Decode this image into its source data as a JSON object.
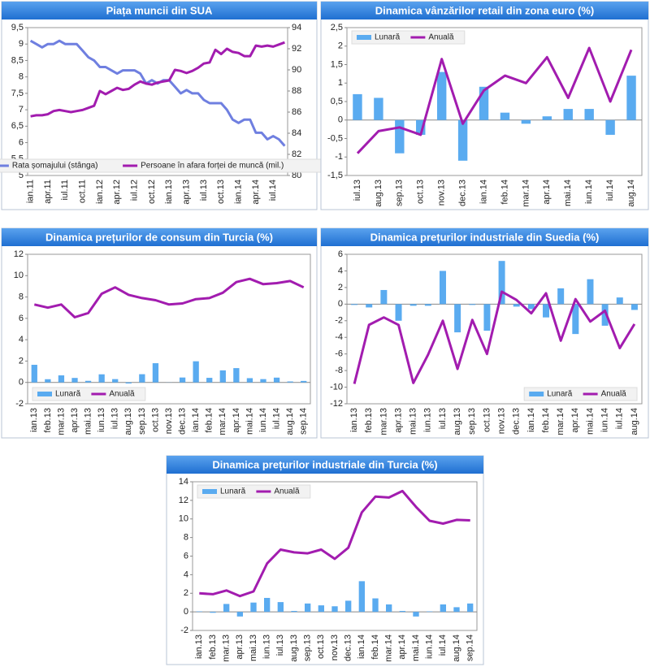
{
  "chart_data": [
    {
      "type": "line",
      "title": "Piața muncii din SUA",
      "categories": [
        "ian.11",
        null,
        null,
        "apr.11",
        null,
        null,
        "iul.11",
        null,
        null,
        "oct.11",
        null,
        null,
        "ian.12",
        null,
        null,
        "apr.12",
        null,
        null,
        "iul.12",
        null,
        null,
        "oct.12",
        null,
        null,
        "ian.13",
        null,
        null,
        "apr.13",
        null,
        null,
        "iul.13",
        null,
        null,
        "oct.13",
        null,
        null,
        "ian.14",
        null,
        null,
        "apr.14",
        null,
        null,
        "iul.14",
        null,
        null
      ],
      "series": [
        {
          "name": "Rata șomajului (stânga)",
          "color": "#6f7fe0",
          "type": "line",
          "axis": "y",
          "values": [
            9.1,
            9.0,
            8.9,
            9.0,
            9.0,
            9.1,
            9.0,
            9.0,
            9.0,
            8.8,
            8.6,
            8.5,
            8.3,
            8.3,
            8.2,
            8.1,
            8.2,
            8.2,
            8.2,
            8.1,
            7.8,
            7.9,
            7.8,
            7.9,
            7.9,
            7.7,
            7.5,
            7.6,
            7.5,
            7.5,
            7.3,
            7.2,
            7.2,
            7.2,
            7.0,
            6.7,
            6.6,
            6.7,
            6.7,
            6.3,
            6.3,
            6.1,
            6.2,
            6.1,
            5.9
          ]
        },
        {
          "name": "Persoane în afara forței de muncă (mil.)",
          "color": "#a21caf",
          "type": "line",
          "axis": "y2",
          "values": [
            85.6,
            85.7,
            85.7,
            85.8,
            86.1,
            86.2,
            86.1,
            86.0,
            86.1,
            86.2,
            86.4,
            86.6,
            88.0,
            87.7,
            88.0,
            88.3,
            88.1,
            88.2,
            88.6,
            88.9,
            88.7,
            88.6,
            88.8,
            88.9,
            89.0,
            90.0,
            89.9,
            89.7,
            89.9,
            90.2,
            90.6,
            90.7,
            91.9,
            91.5,
            92.0,
            91.7,
            91.6,
            91.3,
            91.3,
            92.3,
            92.2,
            92.3,
            92.2,
            92.4,
            92.6
          ]
        }
      ],
      "ylim": [
        5,
        9.5
      ],
      "yticks": [
        5,
        {
          "value": 5.5,
          "label": "5,5"
        },
        6,
        {
          "value": 6.5,
          "label": "6,5"
        },
        7,
        {
          "value": 7.5,
          "label": "7,5"
        },
        8,
        {
          "value": 8.5,
          "label": "8,5"
        },
        9,
        {
          "value": 9.5,
          "label": "9,5"
        }
      ],
      "y2lim": [
        80,
        94
      ],
      "y2ticks": [
        80,
        82,
        84,
        86,
        88,
        90,
        92,
        94
      ],
      "grid": false,
      "legend": "lower center"
    },
    {
      "type": "combo",
      "title": "Dinamica vânzărilor retail din zona euro (%)",
      "categories": [
        "iul.13",
        "aug.13",
        "sep.13",
        "oct.13",
        "nov.13",
        "dec.13",
        "ian.14",
        "feb.14",
        "mar.14",
        "apr.14",
        "mai.14",
        "iun.14",
        "iul.14",
        "aug.14"
      ],
      "series": [
        {
          "name": "Lunară",
          "color": "#5aabf0",
          "type": "bar",
          "values": [
            0.7,
            0.6,
            -0.9,
            -0.4,
            1.3,
            -1.1,
            0.9,
            0.2,
            -0.1,
            0.1,
            0.3,
            0.3,
            -0.4,
            1.2
          ]
        },
        {
          "name": "Anuală",
          "color": "#a21caf",
          "type": "line",
          "values": [
            -0.9,
            -0.3,
            -0.2,
            -0.4,
            1.65,
            -0.1,
            0.8,
            1.2,
            1.0,
            1.7,
            0.6,
            1.95,
            0.5,
            1.9
          ]
        }
      ],
      "ylim": [
        -1.5,
        2.5
      ],
      "yticks": [
        {
          "value": -1.5,
          "label": "-1,5"
        },
        -1,
        {
          "value": -0.5,
          "label": "-0,5"
        },
        0,
        {
          "value": 0.5,
          "label": "0,5"
        },
        1,
        {
          "value": 1.5,
          "label": "1,5"
        },
        2,
        {
          "value": 2.5,
          "label": "2,5"
        }
      ],
      "grid": false,
      "legend": "upper left"
    },
    {
      "type": "combo",
      "title": "Dinamica prețurilor de consum din Turcia (%)",
      "categories": [
        "ian.13",
        "feb.13",
        "mar.13",
        "apr.13",
        "mai.13",
        "iun.13",
        "iul.13",
        "aug.13",
        "sep.13",
        "oct.13",
        "nov.13",
        "dec.13",
        "ian.14",
        "feb.14",
        "mar.14",
        "apr.14",
        "mai.14",
        "iun.14",
        "iul.14",
        "aug.14",
        "sep.14"
      ],
      "series": [
        {
          "name": "Lunară",
          "color": "#5aabf0",
          "type": "bar",
          "values": [
            1.65,
            0.3,
            0.66,
            0.42,
            0.15,
            0.76,
            0.31,
            -0.1,
            0.77,
            1.8,
            0.01,
            0.46,
            1.98,
            0.43,
            1.13,
            1.34,
            0.4,
            0.31,
            0.45,
            0.09,
            0.14
          ]
        },
        {
          "name": "Anuală",
          "color": "#a21caf",
          "type": "line",
          "values": [
            7.3,
            7.0,
            7.3,
            6.1,
            6.5,
            8.3,
            8.9,
            8.2,
            7.9,
            7.7,
            7.3,
            7.4,
            7.8,
            7.9,
            8.4,
            9.4,
            9.7,
            9.2,
            9.3,
            9.5,
            8.9
          ]
        }
      ],
      "ylim": [
        -2,
        12
      ],
      "yticks": [
        -2,
        0,
        2,
        4,
        6,
        8,
        10,
        12
      ],
      "grid": false,
      "legend": "lower left"
    },
    {
      "type": "combo",
      "title": "Dinamica prețurilor industriale din Suedia (%)",
      "categories": [
        "ian.13",
        "feb.13",
        "mar.13",
        "apr.13",
        "mai.13",
        "iun.13",
        "iul.13",
        "aug.13",
        "sep.13",
        "oct.13",
        "nov.13",
        "dec.13",
        "ian.14",
        "feb.14",
        "mar.14",
        "apr.14",
        "mai.14",
        "iun.14",
        "iul.14",
        "aug.14"
      ],
      "series": [
        {
          "name": "Lunară",
          "color": "#5aabf0",
          "type": "bar",
          "values": [
            -0.1,
            -0.4,
            1.7,
            -2.0,
            -0.2,
            -0.2,
            4.0,
            -3.4,
            -0.1,
            -3.2,
            5.2,
            -0.3,
            -0.6,
            -1.6,
            1.9,
            -3.6,
            3.0,
            -2.6,
            0.8,
            -0.7
          ]
        },
        {
          "name": "Anuală",
          "color": "#a21caf",
          "type": "line",
          "values": [
            -9.6,
            -2.5,
            -1.6,
            -2.5,
            -9.5,
            -6.1,
            -2.0,
            -7.8,
            -1.9,
            -6.0,
            1.5,
            0.5,
            -1.1,
            1.3,
            -4.4,
            0.6,
            -2.1,
            -0.8,
            -5.3,
            -2.4
          ]
        }
      ],
      "ylim": [
        -12,
        6
      ],
      "yticks": [
        -12,
        -10,
        -8,
        -6,
        -4,
        -2,
        0,
        2,
        4,
        6
      ],
      "grid": false,
      "legend": "lower right"
    },
    {
      "type": "combo",
      "title": "Dinamica prețurilor industriale din Turcia (%)",
      "categories": [
        "ian.13",
        "feb.13",
        "mar.13",
        "apr.13",
        "mai.13",
        "iun.13",
        "iul.13",
        "aug.13",
        "sep.13",
        "oct.13",
        "nov.13",
        "dec.13",
        "ian.14",
        "feb.14",
        "mar.14",
        "apr.14",
        "mai.14",
        "iun.14",
        "iul.14",
        "aug.14",
        "sep.14"
      ],
      "series": [
        {
          "name": "Lunară",
          "color": "#5aabf0",
          "type": "bar",
          "values": [
            0.05,
            -0.1,
            0.85,
            -0.5,
            1.0,
            1.5,
            1.05,
            0.1,
            0.9,
            0.7,
            0.6,
            1.2,
            3.3,
            1.45,
            0.8,
            0.1,
            -0.5,
            0.05,
            0.8,
            0.5,
            0.9
          ]
        },
        {
          "name": "Anuală",
          "color": "#a21caf",
          "type": "line",
          "values": [
            2.0,
            1.9,
            2.3,
            1.7,
            2.2,
            5.2,
            6.7,
            6.4,
            6.3,
            6.7,
            5.7,
            6.9,
            10.7,
            12.4,
            12.3,
            13.0,
            11.3,
            9.8,
            9.5,
            9.9,
            9.85
          ]
        }
      ],
      "ylim": [
        -2,
        14
      ],
      "yticks": [
        -2,
        0,
        2,
        4,
        6,
        8,
        10,
        12,
        14
      ],
      "grid": false,
      "legend": "upper left"
    }
  ]
}
